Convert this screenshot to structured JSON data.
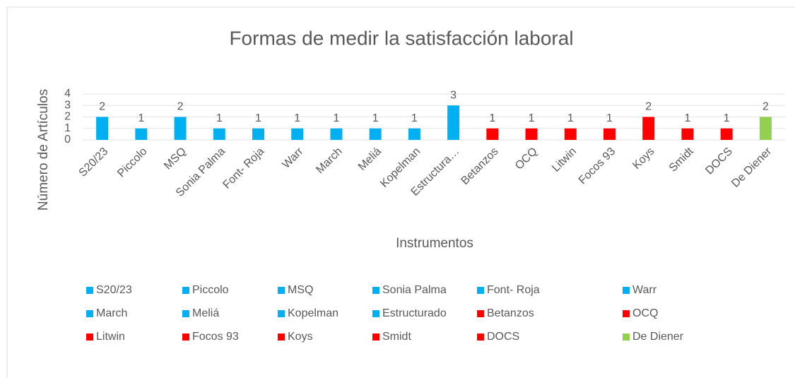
{
  "chart_data": {
    "type": "bar",
    "title": "Formas de medir la satisfacción laboral",
    "x_label": "Instrumentos",
    "y_label": "Número de Artículos",
    "categories": [
      "S20/23",
      "Piccolo",
      "MSQ",
      "Sonia Palma",
      "Font- Roja",
      "Warr",
      "March",
      "Meliá",
      "Kopelman",
      "Estructura…",
      "Betanzos",
      "OCQ",
      "Litwin",
      "Focos 93",
      "Koys",
      "Smidt",
      "DOCS",
      "De Diener"
    ],
    "values": [
      2,
      1,
      2,
      1,
      1,
      1,
      1,
      1,
      1,
      3,
      1,
      1,
      1,
      1,
      2,
      1,
      1,
      2
    ],
    "colors": [
      "#00b0f0",
      "#00b0f0",
      "#00b0f0",
      "#00b0f0",
      "#00b0f0",
      "#00b0f0",
      "#00b0f0",
      "#00b0f0",
      "#00b0f0",
      "#00b0f0",
      "#ff0000",
      "#ff0000",
      "#ff0000",
      "#ff0000",
      "#ff0000",
      "#ff0000",
      "#ff0000",
      "#92d050"
    ],
    "legend_entries": [
      "S20/23",
      "Piccolo",
      "MSQ",
      "Sonia Palma",
      "Font- Roja",
      "Warr",
      "March",
      "Meliá",
      "Kopelman",
      "Estructurado",
      "Betanzos",
      "OCQ",
      "Litwin",
      "Focos 93",
      "Koys",
      "Smidt",
      "DOCS",
      "De Diener"
    ],
    "ylim": [
      0,
      4
    ],
    "yticks": [
      0,
      1,
      2,
      3,
      4
    ],
    "grid": true,
    "legend": "bottom"
  }
}
